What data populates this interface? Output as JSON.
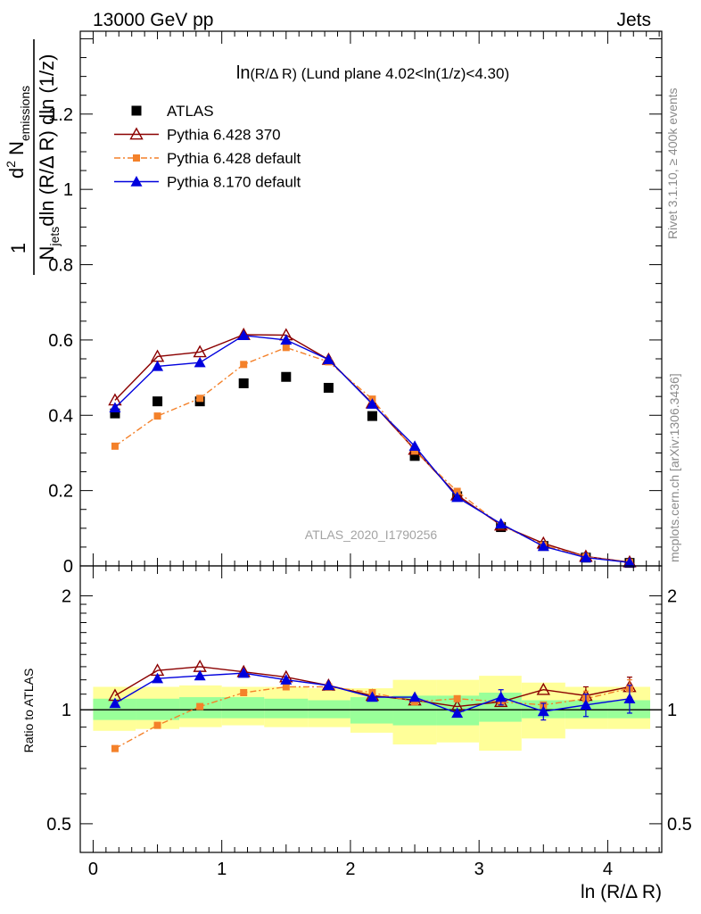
{
  "header": {
    "left": "13000 GeV pp",
    "right": "Jets"
  },
  "top_plot": {
    "title_main": "ln",
    "title_paren": "(R/Δ R)",
    "title_rest": " (Lund plane 4.02<ln(1/z)<4.30)",
    "watermark": "ATLAS_2020_I1790256",
    "ylabel_den_lead": "N",
    "ylabel_den_sub": "jets",
    "ylabel_den_rest": "dln (R/Δ R) dln (1/z)",
    "ylabel_num_lead": "d",
    "ylabel_num_sup": "2",
    "ylabel_num_rest": " N",
    "ylabel_num_sub": "emissions",
    "ylabel_one": "1"
  },
  "ratio_plot": {
    "ylabel": "Ratio to ATLAS"
  },
  "xlabel": "ln (R/Δ R)",
  "side_text": {
    "rivet": "Rivet 3.1.10, ≥ 400k events",
    "mcplots": "mcplots.cern.ch [arXiv:1306.3436]"
  },
  "legend": [
    {
      "label": "ATLAS",
      "color": "#000000",
      "marker": "square-filled",
      "line": "none"
    },
    {
      "label": "Pythia 6.428 370",
      "color": "#8b0000",
      "marker": "triangle-open",
      "line": "solid"
    },
    {
      "label": "Pythia 6.428 default",
      "color": "#f4812a",
      "marker": "square-small",
      "line": "dashdot"
    },
    {
      "label": "Pythia 8.170 default",
      "color": "#0000dd",
      "marker": "triangle-filled",
      "line": "solid"
    }
  ],
  "chart_data": [
    {
      "type": "scatter",
      "x": [
        0.17,
        0.5,
        0.83,
        1.17,
        1.5,
        1.83,
        2.17,
        2.5,
        2.83,
        3.17,
        3.5,
        3.83,
        4.17
      ],
      "xlim": [
        -0.1,
        4.42
      ],
      "ylim": [
        0,
        1.42
      ],
      "xticks": [
        "0",
        "1",
        "2",
        "3",
        "4"
      ],
      "yticks": [
        "0",
        "0.2",
        "0.4",
        "0.6",
        "0.8",
        "1",
        "1.2"
      ],
      "series": [
        {
          "name": "ATLAS",
          "values": [
            0.405,
            0.437,
            0.437,
            0.485,
            0.502,
            0.473,
            0.398,
            0.292,
            0.185,
            0.103,
            0.053,
            0.022,
            0.008
          ]
        },
        {
          "name": "Pythia 6.428 370",
          "values": [
            0.44,
            0.556,
            0.568,
            0.614,
            0.613,
            0.548,
            0.432,
            0.309,
            0.188,
            0.108,
            0.06,
            0.025,
            0.01
          ]
        },
        {
          "name": "Pythia 6.428 default",
          "values": [
            0.318,
            0.398,
            0.445,
            0.535,
            0.58,
            0.542,
            0.443,
            0.305,
            0.198,
            0.108,
            0.055,
            0.024,
            0.009
          ]
        },
        {
          "name": "Pythia 8.170 default",
          "values": [
            0.42,
            0.53,
            0.54,
            0.612,
            0.6,
            0.548,
            0.43,
            0.318,
            0.182,
            0.112,
            0.052,
            0.022,
            0.009
          ]
        }
      ]
    },
    {
      "type": "scatter",
      "x": [
        0.17,
        0.5,
        0.83,
        1.17,
        1.5,
        1.83,
        2.17,
        2.5,
        2.83,
        3.17,
        3.5,
        3.83,
        4.17
      ],
      "xlim": [
        -0.1,
        4.42
      ],
      "ylabel": "Ratio to ATLAS",
      "yscale": "log",
      "ylim": [
        0.42,
        2.4
      ],
      "yticks": [
        "0.5",
        "1",
        "2"
      ],
      "reference_line": 1,
      "bins": [
        [
          0,
          0.33
        ],
        [
          0.33,
          0.67
        ],
        [
          0.67,
          1.0
        ],
        [
          1.0,
          1.33
        ],
        [
          1.33,
          1.67
        ],
        [
          1.67,
          2.0
        ],
        [
          2.0,
          2.33
        ],
        [
          2.33,
          2.67
        ],
        [
          2.67,
          3.0
        ],
        [
          3.0,
          3.33
        ],
        [
          3.33,
          3.67
        ],
        [
          3.67,
          4.0
        ],
        [
          4.0,
          4.33
        ]
      ],
      "band_green": [
        [
          0.94,
          1.07
        ],
        [
          0.94,
          1.07
        ],
        [
          0.95,
          1.08
        ],
        [
          0.95,
          1.08
        ],
        [
          0.95,
          1.07
        ],
        [
          0.95,
          1.06
        ],
        [
          0.92,
          1.08
        ],
        [
          0.91,
          1.09
        ],
        [
          0.91,
          1.09
        ],
        [
          0.93,
          1.11
        ],
        [
          0.95,
          1.06
        ],
        [
          0.95,
          1.06
        ],
        [
          0.95,
          1.06
        ]
      ],
      "band_yellow": [
        [
          0.88,
          1.15
        ],
        [
          0.89,
          1.15
        ],
        [
          0.9,
          1.16
        ],
        [
          0.91,
          1.15
        ],
        [
          0.9,
          1.15
        ],
        [
          0.9,
          1.14
        ],
        [
          0.87,
          1.14
        ],
        [
          0.81,
          1.2
        ],
        [
          0.82,
          1.2
        ],
        [
          0.78,
          1.23
        ],
        [
          0.84,
          1.18
        ],
        [
          0.89,
          1.15
        ],
        [
          0.89,
          1.15
        ]
      ],
      "series": [
        {
          "name": "Pythia 6.428 370",
          "values": [
            1.09,
            1.27,
            1.3,
            1.26,
            1.22,
            1.16,
            1.09,
            1.06,
            1.02,
            1.05,
            1.13,
            1.09,
            1.15
          ],
          "errors": [
            0,
            0,
            0,
            0,
            0,
            0,
            0,
            0,
            0,
            0,
            0,
            0.06,
            0.07
          ]
        },
        {
          "name": "Pythia 6.428 default",
          "values": [
            0.79,
            0.91,
            1.02,
            1.11,
            1.15,
            1.15,
            1.11,
            1.05,
            1.07,
            1.05,
            1.03,
            1.07,
            1.14
          ],
          "errors": [
            0,
            0,
            0,
            0,
            0,
            0,
            0,
            0,
            0,
            0,
            0,
            0.05,
            0.06
          ]
        },
        {
          "name": "Pythia 8.170 default",
          "values": [
            1.04,
            1.21,
            1.23,
            1.25,
            1.2,
            1.16,
            1.08,
            1.08,
            0.98,
            1.08,
            0.99,
            1.03,
            1.07
          ],
          "errors": [
            0,
            0,
            0,
            0,
            0,
            0,
            0,
            0,
            0,
            0.05,
            0.05,
            0.07,
            0.09
          ]
        }
      ]
    }
  ]
}
